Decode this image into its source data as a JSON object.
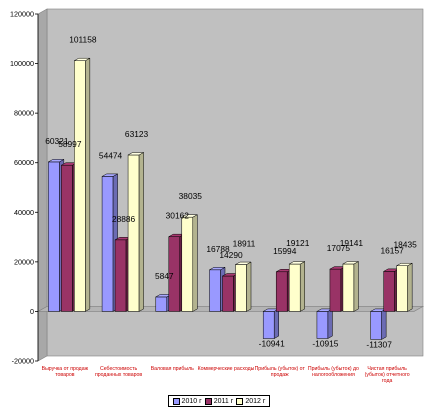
{
  "chart_data": {
    "type": "bar",
    "style": "3d-clustered-column",
    "categories": [
      "Выручка от продаж товаров",
      "Себестоимость проданных товаров",
      "Валовая прибыль",
      "Коммерческие расходы",
      "Прибыль (убыток) от продаж",
      "Прибыль (убыток) до налогообложения",
      "Чистая прибыль (убыток) отчетного года"
    ],
    "series": [
      {
        "name": "2010 г",
        "color": "#9999ff",
        "values": [
          60321,
          54474,
          5847,
          16788,
          -10941,
          -10915,
          -11307
        ]
      },
      {
        "name": "2011 г",
        "color": "#993366",
        "values": [
          58997,
          28886,
          30162,
          14290,
          15994,
          17075,
          16157
        ]
      },
      {
        "name": "2012 г",
        "color": "#ffffcc",
        "values": [
          101158,
          63123,
          38035,
          18911,
          19121,
          19141,
          18435
        ]
      }
    ],
    "data_labels": [
      [
        "60321",
        "54474",
        "5847",
        "16788",
        "-10941",
        "-10915",
        "-11307"
      ],
      [
        "58997",
        "28886",
        "30162",
        "14290",
        "15994",
        "17075",
        "16157"
      ],
      [
        "101158",
        "63123",
        "38035",
        "18911",
        "19121",
        "19141",
        "18435"
      ]
    ],
    "ylim": [
      -20000,
      120000
    ],
    "yticks": [
      "-20000",
      "0",
      "20000",
      "40000",
      "60000",
      "80000",
      "100000",
      "120000"
    ],
    "ytick_values": [
      -20000,
      0,
      20000,
      40000,
      60000,
      80000,
      100000,
      120000
    ],
    "legend_position": "bottom",
    "grid": false,
    "wall_color": "#c0c0c0",
    "category_label_color": "#cc0000"
  }
}
